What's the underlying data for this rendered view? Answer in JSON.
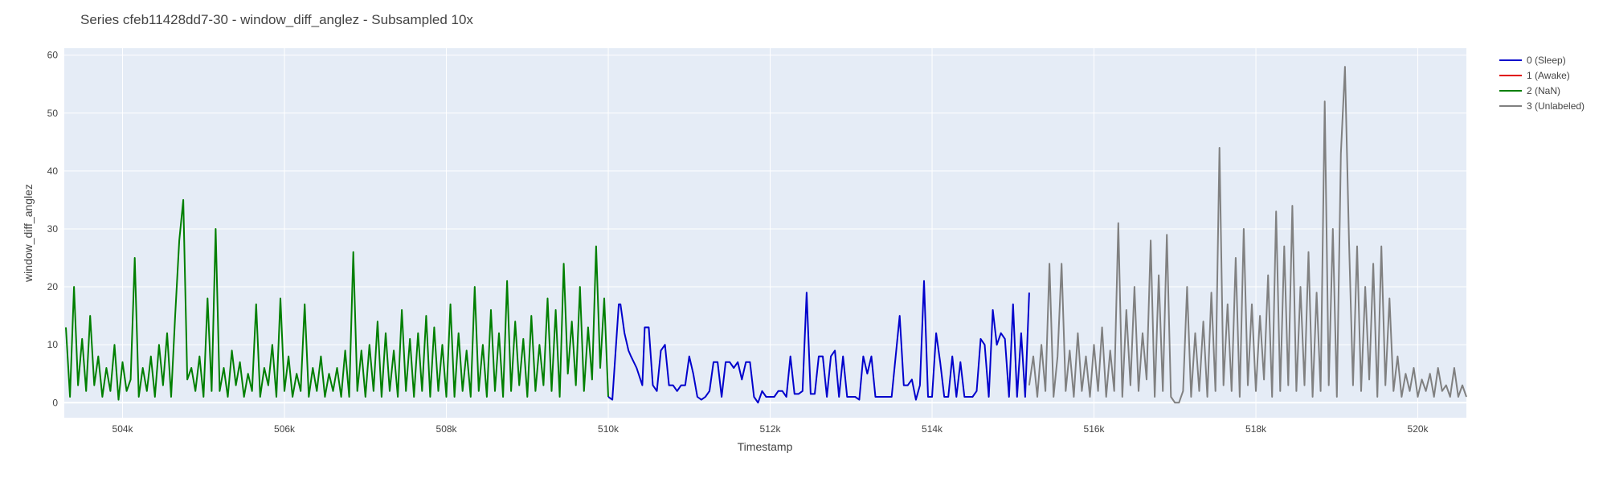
{
  "chart_data": {
    "type": "line",
    "title": "Series cfeb11428dd7-30 - window_diff_anglez - Subsampled 10x",
    "xlabel": "Timestamp",
    "ylabel": "window_diff_anglez",
    "xlim": [
      503280,
      520600
    ],
    "ylim": [
      -2.6,
      61.2
    ],
    "grid": true,
    "plot_background": "#e5ecf6",
    "legend_placement": "top-right-outside",
    "x_ticks": [
      {
        "value": 504000,
        "label": "504k"
      },
      {
        "value": 506000,
        "label": "506k"
      },
      {
        "value": 508000,
        "label": "508k"
      },
      {
        "value": 510000,
        "label": "510k"
      },
      {
        "value": 512000,
        "label": "512k"
      },
      {
        "value": 514000,
        "label": "514k"
      },
      {
        "value": 516000,
        "label": "516k"
      },
      {
        "value": 518000,
        "label": "518k"
      },
      {
        "value": 520000,
        "label": "520k"
      }
    ],
    "y_ticks": [
      {
        "value": 0,
        "label": "0"
      },
      {
        "value": 10,
        "label": "10"
      },
      {
        "value": 20,
        "label": "20"
      },
      {
        "value": 30,
        "label": "30"
      },
      {
        "value": 40,
        "label": "40"
      },
      {
        "value": 50,
        "label": "50"
      },
      {
        "value": 60,
        "label": "60"
      }
    ],
    "series": [
      {
        "name": "0 (Sleep)",
        "color": "#0000cc",
        "x": [
          510000,
          510050,
          510130,
          510150,
          510200,
          510250,
          510280,
          510350,
          510420,
          510450,
          510500,
          510550,
          510600,
          510650,
          510700,
          510750,
          510800,
          510850,
          510900,
          510950,
          511000,
          511050,
          511100,
          511150,
          511200,
          511250,
          511300,
          511350,
          511400,
          511450,
          511500,
          511550,
          511600,
          511650,
          511700,
          511750,
          511800,
          511850,
          511900,
          511950,
          512000,
          512050,
          512100,
          512150,
          512200,
          512250,
          512300,
          512350,
          512400,
          512450,
          512500,
          512550,
          512600,
          512650,
          512700,
          512750,
          512800,
          512850,
          512900,
          512950,
          513000,
          513050,
          513100,
          513150,
          513200,
          513250,
          513300,
          513350,
          513400,
          513450,
          513500,
          513550,
          513600,
          513650,
          513700,
          513750,
          513800,
          513850,
          513900,
          513950,
          514000,
          514050,
          514100,
          514150,
          514200,
          514250,
          514300,
          514350,
          514400,
          514450,
          514500,
          514550,
          514600,
          514650,
          514700,
          514750,
          514800,
          514850,
          514900,
          514950,
          515000,
          515050,
          515100,
          515150,
          515200
        ],
        "y": [
          1,
          0.5,
          17,
          17,
          12,
          9,
          8,
          6,
          3,
          13,
          13,
          3,
          2,
          9,
          10,
          3,
          3,
          2,
          3,
          3,
          8,
          5,
          1,
          0.5,
          1,
          2,
          7,
          7,
          1,
          7,
          7,
          6,
          7,
          4,
          7,
          7,
          1,
          0,
          2,
          1,
          1,
          1,
          2,
          2,
          1,
          8,
          1.5,
          1.5,
          2,
          19,
          1.5,
          1.5,
          8,
          8,
          1,
          8,
          9,
          1,
          8,
          1,
          1,
          1,
          0.5,
          8,
          5,
          8,
          1,
          1,
          1,
          1,
          1,
          8,
          15,
          3,
          3,
          4,
          0.5,
          3,
          21,
          1,
          1,
          12,
          7,
          1,
          1,
          8,
          1,
          7,
          1,
          1,
          1,
          2,
          11,
          10,
          1,
          16,
          10,
          12,
          11,
          1,
          17,
          1,
          12,
          1,
          19
        ]
      },
      {
        "name": "1 (Awake)",
        "color": "#e00000",
        "x": [],
        "y": []
      },
      {
        "name": "2 (NaN)",
        "color": "#007f00",
        "x": [
          503300,
          503350,
          503400,
          503450,
          503500,
          503550,
          503600,
          503650,
          503700,
          503750,
          503800,
          503850,
          503900,
          503950,
          504000,
          504050,
          504100,
          504150,
          504200,
          504250,
          504300,
          504350,
          504400,
          504450,
          504500,
          504550,
          504600,
          504650,
          504700,
          504750,
          504800,
          504850,
          504900,
          504950,
          505000,
          505050,
          505100,
          505150,
          505200,
          505250,
          505300,
          505350,
          505400,
          505450,
          505500,
          505550,
          505600,
          505650,
          505700,
          505750,
          505800,
          505850,
          505900,
          505950,
          506000,
          506050,
          506100,
          506150,
          506200,
          506250,
          506300,
          506350,
          506400,
          506450,
          506500,
          506550,
          506600,
          506650,
          506700,
          506750,
          506800,
          506850,
          506900,
          506950,
          507000,
          507050,
          507100,
          507150,
          507200,
          507250,
          507300,
          507350,
          507400,
          507450,
          507500,
          507550,
          507600,
          507650,
          507700,
          507750,
          507800,
          507850,
          507900,
          507950,
          508000,
          508050,
          508100,
          508150,
          508200,
          508250,
          508300,
          508350,
          508400,
          508450,
          508500,
          508550,
          508600,
          508650,
          508700,
          508750,
          508800,
          508850,
          508900,
          508950,
          509000,
          509050,
          509100,
          509150,
          509200,
          509250,
          509300,
          509350,
          509400,
          509450,
          509500,
          509550,
          509600,
          509650,
          509700,
          509750,
          509800,
          509850,
          509900,
          509950,
          510000
        ],
        "y": [
          13,
          1,
          20,
          3,
          11,
          2,
          15,
          3,
          8,
          1,
          6,
          2,
          10,
          0.5,
          7,
          2,
          4,
          25,
          1,
          6,
          2,
          8,
          1,
          10,
          3,
          12,
          1,
          15,
          28,
          35,
          4,
          6,
          2,
          8,
          1,
          18,
          2,
          30,
          2,
          6,
          1,
          9,
          3,
          7,
          1,
          5,
          2,
          17,
          1,
          6,
          3,
          10,
          1,
          18,
          2,
          8,
          1,
          5,
          2,
          17,
          1,
          6,
          2,
          8,
          1,
          5,
          2,
          6,
          1,
          9,
          1,
          26,
          2,
          9,
          1,
          10,
          2,
          14,
          1,
          12,
          2,
          9,
          1,
          16,
          2,
          11,
          1,
          12,
          2,
          15,
          1,
          13,
          2,
          10,
          1,
          17,
          1,
          12,
          2,
          9,
          1,
          20,
          2,
          10,
          1,
          16,
          2,
          12,
          1,
          21,
          2,
          14,
          3,
          11,
          1,
          15,
          2,
          10,
          3,
          18,
          2,
          16,
          1,
          24,
          5,
          14,
          3,
          20,
          2,
          13,
          4,
          27,
          6,
          18,
          1
        ]
      },
      {
        "name": "3 (Unlabeled)",
        "color": "#808080",
        "x": [
          515200,
          515250,
          515300,
          515350,
          515400,
          515450,
          515500,
          515550,
          515600,
          515650,
          515700,
          515750,
          515800,
          515850,
          515900,
          515950,
          516000,
          516050,
          516100,
          516150,
          516200,
          516250,
          516300,
          516350,
          516400,
          516450,
          516500,
          516550,
          516600,
          516650,
          516700,
          516750,
          516800,
          516850,
          516900,
          516950,
          517000,
          517050,
          517100,
          517150,
          517200,
          517250,
          517300,
          517350,
          517400,
          517450,
          517500,
          517550,
          517600,
          517650,
          517700,
          517750,
          517800,
          517850,
          517900,
          517950,
          518000,
          518050,
          518100,
          518150,
          518200,
          518250,
          518300,
          518350,
          518400,
          518450,
          518500,
          518550,
          518600,
          518650,
          518700,
          518750,
          518800,
          518850,
          518900,
          518950,
          519000,
          519050,
          519100,
          519150,
          519200,
          519250,
          519300,
          519350,
          519400,
          519450,
          519500,
          519550,
          519600,
          519650,
          519700,
          519750,
          519800,
          519850,
          519900,
          519950,
          520000,
          520050,
          520100,
          520150,
          520200,
          520250,
          520300,
          520350,
          520400,
          520450,
          520500,
          520550,
          520600
        ],
        "y": [
          3,
          8,
          1,
          10,
          2,
          24,
          1,
          8,
          24,
          2,
          9,
          1,
          12,
          2,
          8,
          1,
          10,
          2,
          13,
          1,
          9,
          2,
          31,
          1,
          16,
          3,
          20,
          2,
          12,
          4,
          28,
          1,
          22,
          2,
          29,
          1,
          0,
          0,
          2,
          20,
          1,
          12,
          2,
          14,
          1,
          19,
          2,
          44,
          3,
          17,
          2,
          25,
          1,
          30,
          3,
          17,
          2,
          15,
          4,
          22,
          1,
          33,
          2,
          27,
          3,
          34,
          2,
          20,
          3,
          26,
          1,
          19,
          2,
          52,
          3,
          30,
          1,
          43,
          58,
          28,
          3,
          27,
          2,
          20,
          4,
          24,
          1,
          27,
          3,
          18,
          2,
          8,
          1,
          5,
          2,
          6,
          1,
          4,
          2,
          5,
          1,
          6,
          2,
          3,
          1,
          6,
          1,
          3,
          1
        ]
      }
    ]
  }
}
